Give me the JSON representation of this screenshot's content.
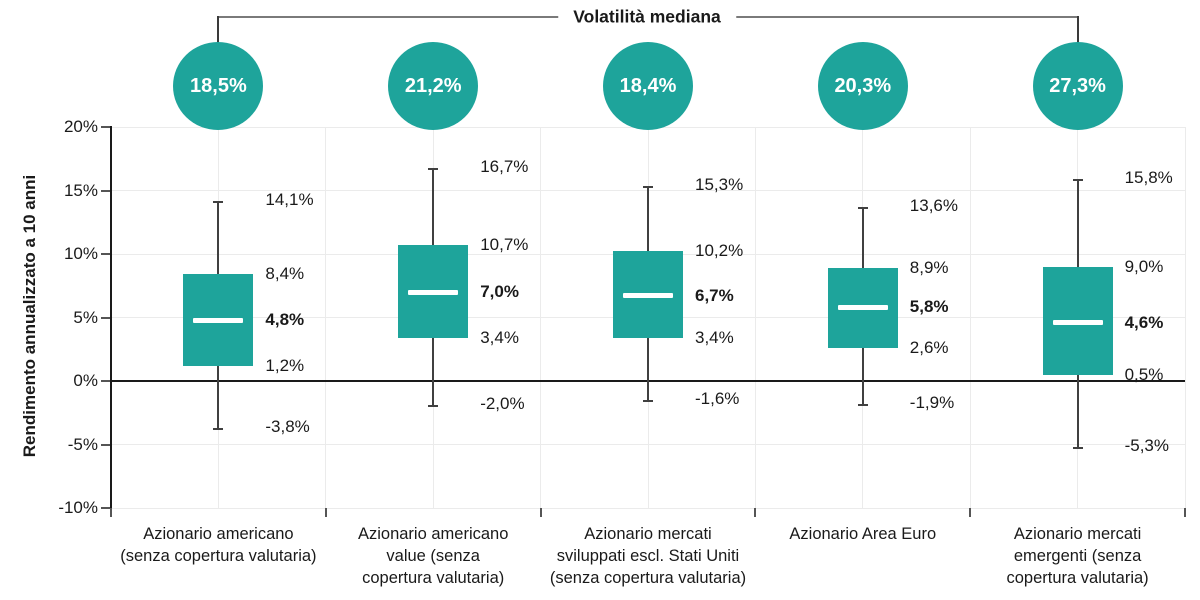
{
  "chart_data": {
    "type": "boxplot",
    "title": "Volatilità mediana",
    "ylabel": "Rendimento annualizzato a 10 anni",
    "ylim": [
      -10,
      20
    ],
    "ytick_step": 5,
    "grid": true,
    "yticks": [
      {
        "value": 20,
        "label": "20%"
      },
      {
        "value": 15,
        "label": "15%"
      },
      {
        "value": 10,
        "label": "10%"
      },
      {
        "value": 5,
        "label": "5%"
      },
      {
        "value": 0,
        "label": "0%"
      },
      {
        "value": -5,
        "label": "-5%"
      },
      {
        "value": -10,
        "label": "-10%"
      }
    ],
    "series": [
      {
        "category": "Azionario americano\n(senza copertura valutaria)",
        "volatility_median": "18,5%",
        "max": {
          "value": 14.1,
          "label": "14,1%"
        },
        "q3": {
          "value": 8.4,
          "label": "8,4%"
        },
        "median": {
          "value": 4.8,
          "label": "4,8%"
        },
        "q1": {
          "value": 1.2,
          "label": "1,2%"
        },
        "min": {
          "value": -3.8,
          "label": "-3,8%"
        }
      },
      {
        "category": "Azionario americano\nvalue (senza\ncopertura valutaria)",
        "volatility_median": "21,2%",
        "max": {
          "value": 16.7,
          "label": "16,7%"
        },
        "q3": {
          "value": 10.7,
          "label": "10,7%"
        },
        "median": {
          "value": 7.0,
          "label": "7,0%"
        },
        "q1": {
          "value": 3.4,
          "label": "3,4%"
        },
        "min": {
          "value": -2.0,
          "label": "-2,0%"
        }
      },
      {
        "category": "Azionario mercati\nsviluppati escl. Stati Uniti\n(senza copertura valutaria)",
        "volatility_median": "18,4%",
        "max": {
          "value": 15.3,
          "label": "15,3%"
        },
        "q3": {
          "value": 10.2,
          "label": "10,2%"
        },
        "median": {
          "value": 6.7,
          "label": "6,7%"
        },
        "q1": {
          "value": 3.4,
          "label": "3,4%"
        },
        "min": {
          "value": -1.6,
          "label": "-1,6%"
        }
      },
      {
        "category": "Azionario Area Euro",
        "volatility_median": "20,3%",
        "max": {
          "value": 13.6,
          "label": "13,6%"
        },
        "q3": {
          "value": 8.9,
          "label": "8,9%"
        },
        "median": {
          "value": 5.8,
          "label": "5,8%"
        },
        "q1": {
          "value": 2.6,
          "label": "2,6%"
        },
        "min": {
          "value": -1.9,
          "label": "-1,9%"
        }
      },
      {
        "category": "Azionario mercati\nemergenti (senza\ncopertura valutaria)",
        "volatility_median": "27,3%",
        "max": {
          "value": 15.8,
          "label": "15,8%"
        },
        "q3": {
          "value": 9.0,
          "label": "9,0%"
        },
        "median": {
          "value": 4.6,
          "label": "4,6%"
        },
        "q1": {
          "value": 0.5,
          "label": "0,5%"
        },
        "min": {
          "value": -5.3,
          "label": "-5,3%"
        }
      }
    ]
  },
  "colors": {
    "teal": "#1EA49B",
    "whisker": "#404040",
    "grid": "#EBEBEB",
    "axis": "#1A1A1A",
    "bracket": "#7A7A7A",
    "text": "#1A1A1A",
    "circle-text": "#FFFFFF",
    "bg": "#FFFFFF"
  }
}
